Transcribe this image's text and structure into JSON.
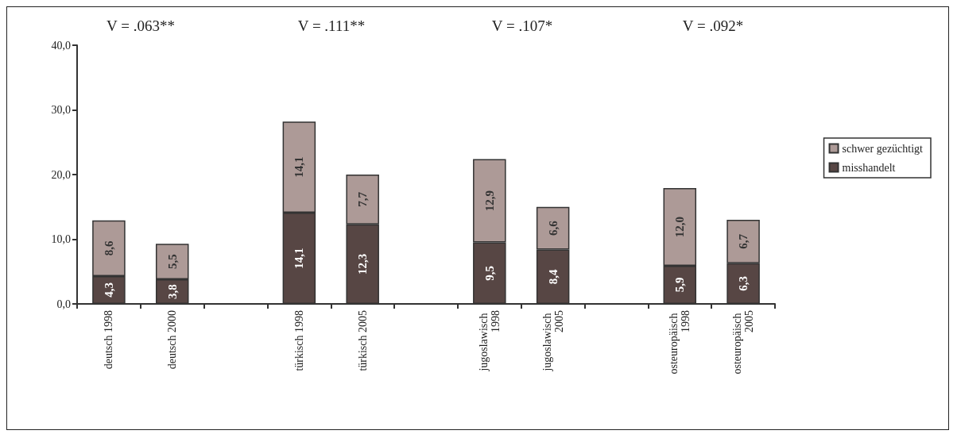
{
  "chart_data": {
    "type": "bar",
    "stacked": true,
    "categories": [
      "deutsch 1998",
      "deutsch 2000",
      null,
      "türkisch 1998",
      "türkisch 2005",
      null,
      "jugoslawisch 1998",
      "jugoslawisch 2005",
      null,
      "osteuropäisch 1998",
      "osteuropäisch 2005"
    ],
    "series": [
      {
        "name": "misshandelt",
        "color": "#574644",
        "values": [
          4.3,
          3.8,
          null,
          14.1,
          12.3,
          null,
          9.5,
          8.4,
          null,
          5.9,
          6.3
        ],
        "value_labels": [
          "4,3",
          "3,8",
          null,
          "14,1",
          "12,3",
          null,
          "9,5",
          "8,4",
          null,
          "5,9",
          "6,3"
        ]
      },
      {
        "name": "schwer gezüchtigt",
        "color": "#ad9a97",
        "values": [
          8.6,
          5.5,
          null,
          14.1,
          7.7,
          null,
          12.9,
          6.6,
          null,
          12.0,
          6.7
        ],
        "value_labels": [
          "8,6",
          "5,5",
          null,
          "14,1",
          "7,7",
          null,
          "12,9",
          "6,6",
          null,
          "12,0",
          "6,7"
        ]
      }
    ],
    "ylim": [
      0,
      40
    ],
    "yticks": [
      {
        "value": 0,
        "label": "0,0"
      },
      {
        "value": 10,
        "label": "10,0"
      },
      {
        "value": 20,
        "label": "20,0"
      },
      {
        "value": 30,
        "label": "30,0"
      },
      {
        "value": 40,
        "label": "40,0"
      }
    ],
    "annotations": [
      "V = .063**",
      "V = .111**",
      "V = .107*",
      "V = .092*"
    ],
    "legend": "right",
    "grid": false
  }
}
